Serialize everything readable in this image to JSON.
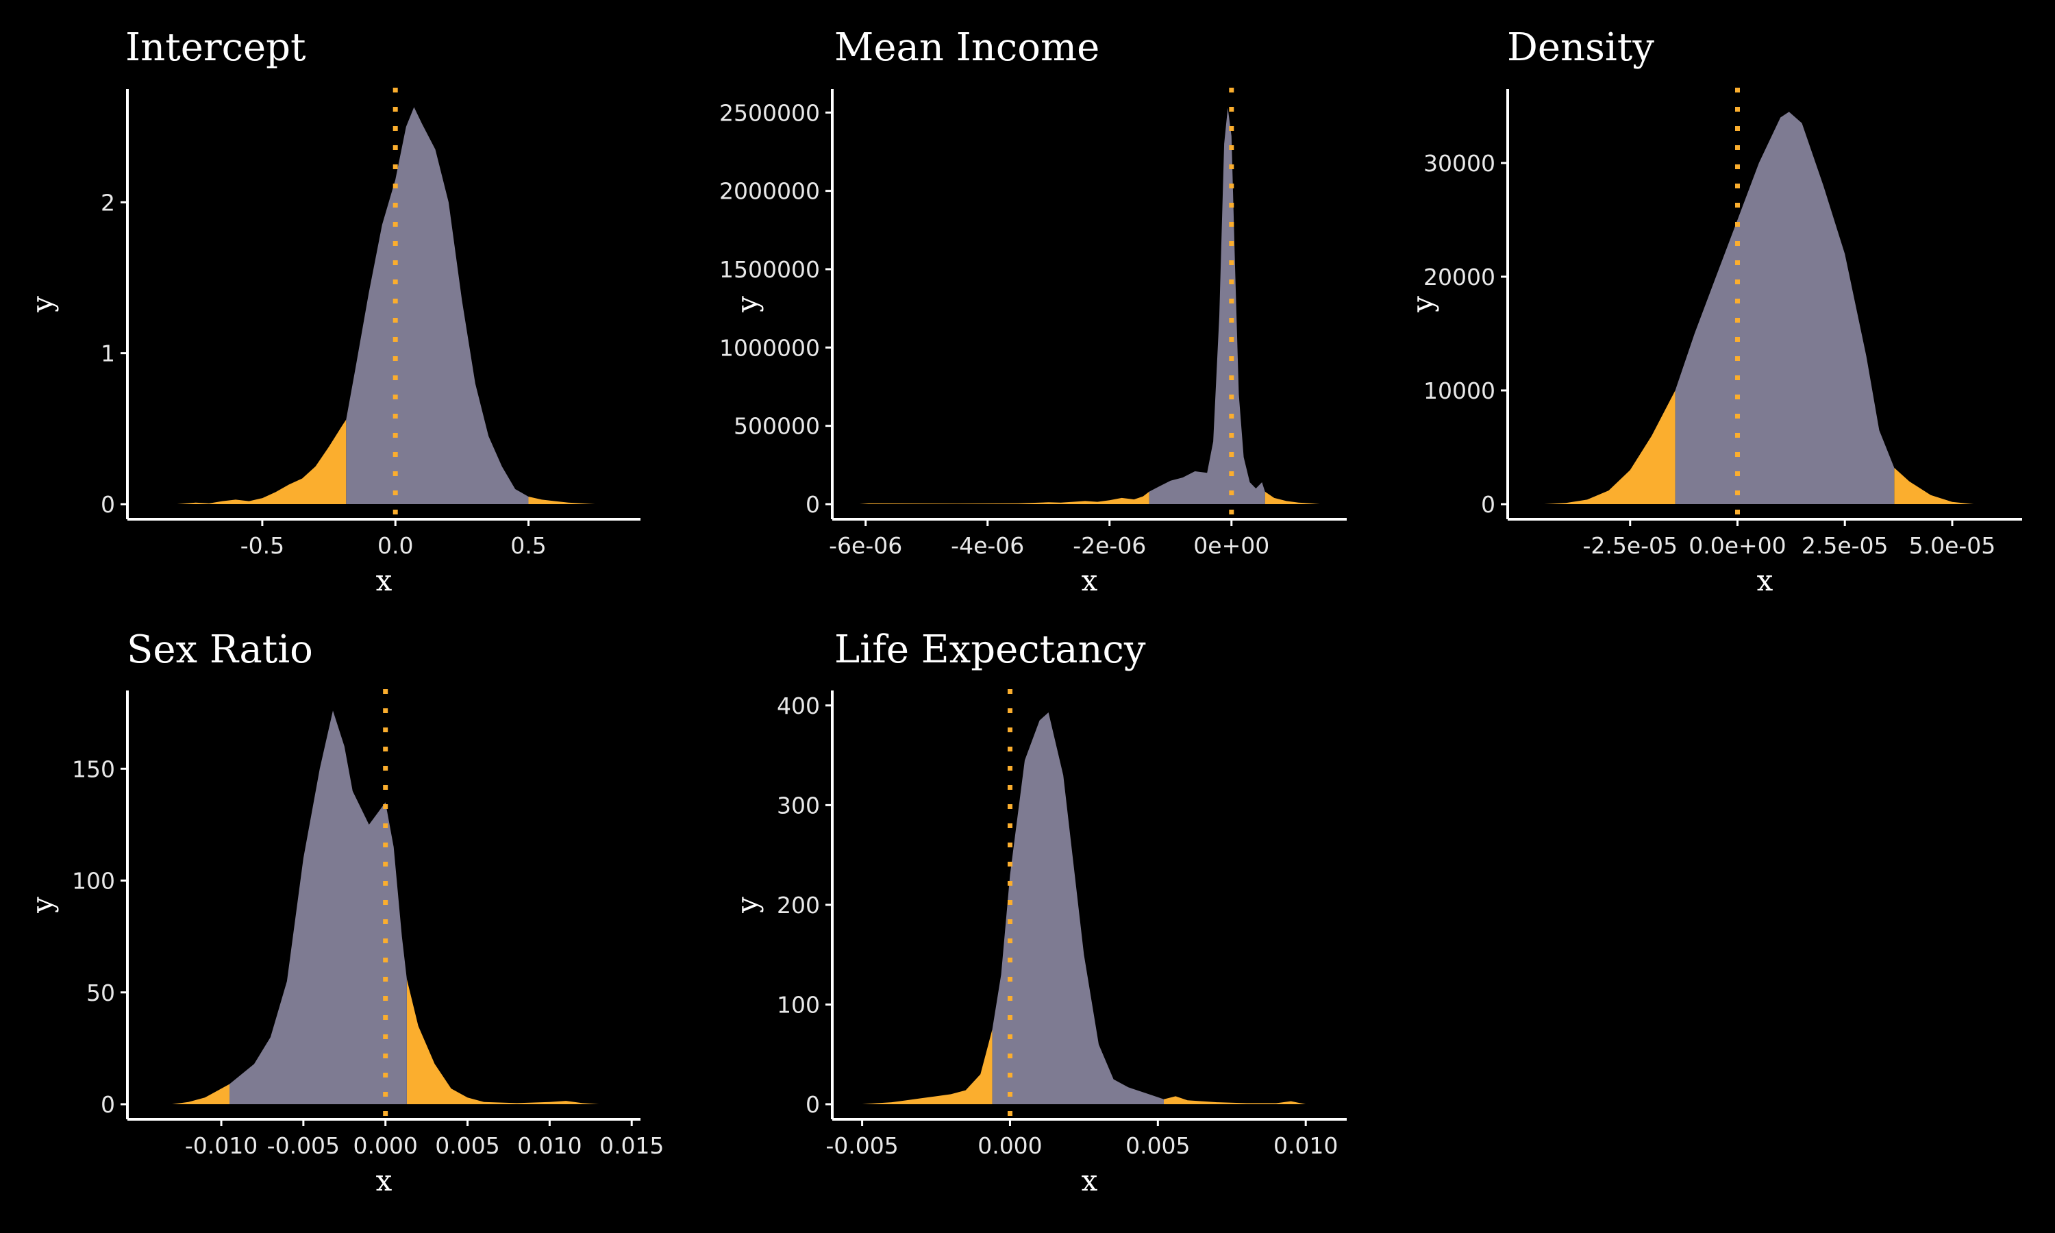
{
  "colors": {
    "background": "#000000",
    "density_fill": "#7e7b92",
    "tail_fill": "#fbae2e",
    "zero_line": "#fbae2e",
    "axis": "#ffffff",
    "text": "#ffffff"
  },
  "chart_data": [
    {
      "type": "area",
      "title": "Intercept",
      "xlabel": "x",
      "ylabel": "y",
      "xlim": [
        -0.95,
        0.9
      ],
      "ylim": [
        0,
        2.75
      ],
      "xticks": [
        -0.5,
        0.0,
        0.5
      ],
      "xtick_labels": [
        "-0.5",
        "0.0",
        "0.5"
      ],
      "yticks": [
        0,
        1,
        2
      ],
      "ytick_labels": [
        "0",
        "1",
        "2"
      ],
      "zero_line": 0,
      "interval": [
        -0.185,
        0.5
      ],
      "x": [
        -0.82,
        -0.75,
        -0.7,
        -0.65,
        -0.6,
        -0.55,
        -0.5,
        -0.45,
        -0.4,
        -0.35,
        -0.3,
        -0.25,
        -0.2,
        -0.185,
        -0.15,
        -0.1,
        -0.05,
        0.0,
        0.04,
        0.07,
        0.1,
        0.15,
        0.2,
        0.25,
        0.3,
        0.35,
        0.4,
        0.45,
        0.5,
        0.55,
        0.6,
        0.65,
        0.7,
        0.75
      ],
      "y": [
        0.0,
        0.01,
        0.005,
        0.02,
        0.03,
        0.02,
        0.04,
        0.08,
        0.13,
        0.17,
        0.25,
        0.38,
        0.52,
        0.56,
        0.9,
        1.4,
        1.85,
        2.15,
        2.5,
        2.63,
        2.52,
        2.35,
        2.0,
        1.35,
        0.8,
        0.45,
        0.25,
        0.1,
        0.05,
        0.03,
        0.02,
        0.01,
        0.005,
        0.0
      ]
    },
    {
      "type": "area",
      "title": "Mean Income",
      "xlabel": "x",
      "ylabel": "y",
      "xlim": [
        -6.3e-06,
        1.8e-06
      ],
      "ylim": [
        0,
        2650000
      ],
      "xticks": [
        -6e-06,
        -4e-06,
        -2e-06,
        0
      ],
      "xtick_labels": [
        "-6e-06",
        "-4e-06",
        "-2e-06",
        "0e+00"
      ],
      "yticks": [
        0,
        500000,
        1000000,
        1500000,
        2000000,
        2500000
      ],
      "ytick_labels": [
        "0",
        "500000",
        "1000000",
        "1500000",
        "2000000",
        "2500000"
      ],
      "zero_line": 0,
      "interval": [
        -1.35e-06,
        5.5e-07
      ],
      "x": [
        -6.1e-06,
        -5.95e-06,
        -4.5e-06,
        -3.5e-06,
        -3e-06,
        -2.8e-06,
        -2.6e-06,
        -2.4e-06,
        -2.2e-06,
        -2e-06,
        -1.8e-06,
        -1.6e-06,
        -1.45e-06,
        -1.35e-06,
        -1.2e-06,
        -1e-06,
        -8e-07,
        -6e-07,
        -4e-07,
        -3e-07,
        -2e-07,
        -1.2e-07,
        -6e-08,
        0.0,
        6e-08,
        1.2e-07,
        2e-07,
        3e-07,
        4e-07,
        5e-07,
        5.5e-07,
        7e-07,
        9e-07,
        1.1e-06,
        1.3e-06,
        1.45e-06
      ],
      "y": [
        0,
        5000,
        3000,
        5000,
        12000,
        10000,
        15000,
        20000,
        15000,
        25000,
        40000,
        30000,
        50000,
        80000,
        110000,
        150000,
        170000,
        210000,
        200000,
        400000,
        1200000,
        2300000,
        2530000,
        2350000,
        1500000,
        700000,
        300000,
        140000,
        100000,
        140000,
        80000,
        40000,
        20000,
        10000,
        5000,
        0
      ]
    },
    {
      "type": "area",
      "title": "Density",
      "xlabel": "x",
      "ylabel": "y",
      "xlim": [
        -5e-05,
        6.5e-05
      ],
      "ylim": [
        0,
        36500
      ],
      "xticks": [
        -2.5e-05,
        0.0,
        2.5e-05,
        5e-05
      ],
      "xtick_labels": [
        "-2.5e-05",
        "0.0e+00",
        "2.5e-05",
        "5.0e-05"
      ],
      "yticks": [
        0,
        10000,
        20000,
        30000
      ],
      "ytick_labels": [
        "0",
        "10000",
        "20000",
        "30000"
      ],
      "zero_line": 0,
      "interval": [
        -1.45e-05,
        3.65e-05
      ],
      "x": [
        -4.5e-05,
        -4e-05,
        -3.5e-05,
        -3e-05,
        -2.5e-05,
        -2e-05,
        -1.45e-05,
        -1e-05,
        -5e-06,
        0.0,
        5e-06,
        1e-05,
        1.2e-05,
        1.5e-05,
        2e-05,
        2.5e-05,
        3e-05,
        3.3e-05,
        3.65e-05,
        4e-05,
        4.5e-05,
        5e-05,
        5.5e-05
      ],
      "y": [
        0,
        100,
        400,
        1200,
        3000,
        6000,
        10000,
        15000,
        20000,
        25000,
        30000,
        34000,
        34500,
        33500,
        28000,
        22000,
        13000,
        6500,
        3200,
        2000,
        800,
        200,
        0
      ]
    },
    {
      "type": "area",
      "title": "Sex Ratio",
      "xlabel": "x",
      "ylabel": "y",
      "xlim": [
        -0.0148,
        0.0152
      ],
      "ylim": [
        0,
        185
      ],
      "xticks": [
        -0.01,
        -0.005,
        0.0,
        0.005,
        0.01,
        0.015
      ],
      "xtick_labels": [
        "-0.010",
        "-0.005",
        "0.000",
        "0.005",
        "0.010",
        "0.015"
      ],
      "yticks": [
        0,
        50,
        100,
        150
      ],
      "ytick_labels": [
        "0",
        "50",
        "100",
        "150"
      ],
      "zero_line": 0,
      "interval": [
        -0.0095,
        0.0013
      ],
      "x": [
        -0.013,
        -0.012,
        -0.011,
        -0.0105,
        -0.0095,
        -0.008,
        -0.007,
        -0.006,
        -0.005,
        -0.004,
        -0.0032,
        -0.0025,
        -0.002,
        -0.001,
        -0.0005,
        0.0,
        0.0005,
        0.001,
        0.0013,
        0.002,
        0.003,
        0.004,
        0.005,
        0.006,
        0.008,
        0.01,
        0.011,
        0.012,
        0.013
      ],
      "y": [
        0,
        1,
        3,
        5,
        9,
        18,
        30,
        55,
        110,
        150,
        176,
        160,
        140,
        125,
        130,
        135,
        115,
        75,
        56,
        35,
        18,
        7,
        3,
        1,
        0.5,
        1,
        1.5,
        0.5,
        0
      ]
    },
    {
      "type": "area",
      "title": "Life Expectancy",
      "xlabel": "x",
      "ylabel": "y",
      "xlim": [
        -0.0055,
        0.0112
      ],
      "ylim": [
        0,
        415
      ],
      "xticks": [
        -0.005,
        0.0,
        0.005,
        0.01
      ],
      "xtick_labels": [
        "-0.005",
        "0.000",
        "0.005",
        "0.010"
      ],
      "yticks": [
        0,
        100,
        200,
        300,
        400
      ],
      "ytick_labels": [
        "0",
        "100",
        "200",
        "300",
        "400"
      ],
      "zero_line": 0,
      "interval": [
        -0.0006,
        0.0052
      ],
      "x": [
        -0.005,
        -0.0045,
        -0.004,
        -0.0035,
        -0.003,
        -0.0025,
        -0.002,
        -0.0015,
        -0.001,
        -0.0006,
        -0.0003,
        0.0,
        0.0005,
        0.001,
        0.0013,
        0.0018,
        0.0025,
        0.003,
        0.0035,
        0.004,
        0.0045,
        0.005,
        0.0052,
        0.0056,
        0.006,
        0.007,
        0.008,
        0.009,
        0.0095,
        0.01
      ],
      "y": [
        0,
        1,
        2,
        4,
        6,
        8,
        10,
        14,
        30,
        75,
        130,
        230,
        345,
        385,
        393,
        330,
        150,
        60,
        25,
        17,
        12,
        7,
        5,
        8,
        4,
        2,
        1,
        1,
        3,
        0
      ]
    }
  ]
}
